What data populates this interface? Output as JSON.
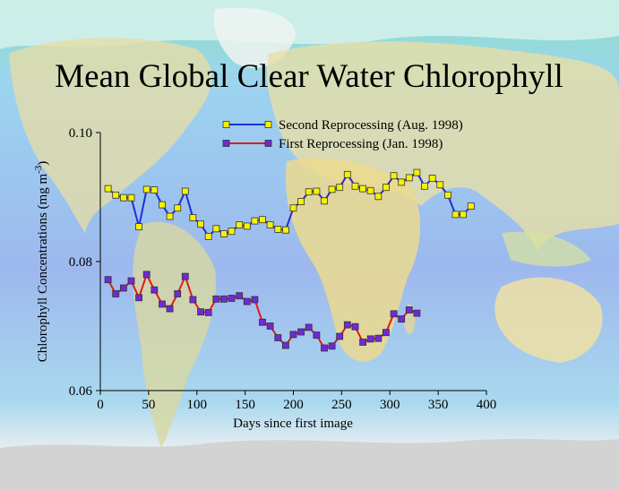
{
  "chart_data": {
    "type": "line",
    "title": "Mean Global Clear Water Chlorophyll",
    "xlabel": "Days since first image",
    "ylabel_main": "Chlorophyll Concentrations (mg m",
    "ylabel_sup": "-3",
    "ylabel_close": ")",
    "xlim": [
      0,
      400
    ],
    "ylim": [
      0.06,
      0.1
    ],
    "x_ticks": [
      0,
      50,
      100,
      150,
      200,
      250,
      300,
      350,
      400
    ],
    "y_ticks": [
      0.06,
      0.08,
      0.1
    ],
    "y_tick_labels": [
      "0.06",
      "0.08",
      "0.10"
    ],
    "grid": false,
    "legend_position": "top-center",
    "series": [
      {
        "name": "Second Reprocessing (Aug. 1998)",
        "line_color": "#1f2fd6",
        "marker_color": "#f7f200",
        "x": [
          8,
          16,
          24,
          32,
          40,
          48,
          56,
          64,
          72,
          80,
          88,
          96,
          104,
          112,
          120,
          128,
          136,
          144,
          152,
          160,
          168,
          176,
          184,
          192,
          200,
          208,
          216,
          224,
          232,
          240,
          248,
          256,
          264,
          272,
          280,
          288,
          296,
          304,
          312,
          320,
          328,
          336,
          344,
          352,
          360,
          368,
          376,
          384
        ],
        "y": [
          0.0913,
          0.0903,
          0.0899,
          0.0899,
          0.0854,
          0.0912,
          0.0911,
          0.0888,
          0.087,
          0.0883,
          0.0909,
          0.0868,
          0.0858,
          0.0839,
          0.0851,
          0.0843,
          0.0847,
          0.0857,
          0.0855,
          0.0863,
          0.0865,
          0.0857,
          0.085,
          0.0849,
          0.0883,
          0.0893,
          0.0908,
          0.0909,
          0.0894,
          0.0912,
          0.0915,
          0.0935,
          0.0917,
          0.0913,
          0.091,
          0.0901,
          0.0915,
          0.0933,
          0.0923,
          0.093,
          0.0938,
          0.0917,
          0.0929,
          0.0919,
          0.0903,
          0.0873,
          0.0873,
          0.0886
        ]
      },
      {
        "name": "First Reprocessing (Jan. 1998)",
        "line_color": "#e01a1a",
        "marker_color": "#6f2ad8",
        "x": [
          8,
          16,
          24,
          32,
          40,
          48,
          56,
          64,
          72,
          80,
          88,
          96,
          104,
          112,
          120,
          128,
          136,
          144,
          152,
          160,
          168,
          176,
          184,
          192,
          200,
          208,
          216,
          224,
          232,
          240,
          248,
          256,
          264,
          272,
          280,
          288,
          296,
          304,
          312,
          320,
          328
        ],
        "y": [
          0.0772,
          0.075,
          0.0759,
          0.077,
          0.0744,
          0.078,
          0.0756,
          0.0734,
          0.0727,
          0.075,
          0.0777,
          0.0741,
          0.0722,
          0.0721,
          0.0742,
          0.0742,
          0.0743,
          0.0747,
          0.0738,
          0.0741,
          0.0706,
          0.07,
          0.0682,
          0.067,
          0.0687,
          0.0691,
          0.0698,
          0.0686,
          0.0666,
          0.0669,
          0.0684,
          0.0702,
          0.0699,
          0.0675,
          0.068,
          0.0681,
          0.069,
          0.0719,
          0.0711,
          0.0725,
          0.072
        ]
      }
    ]
  }
}
